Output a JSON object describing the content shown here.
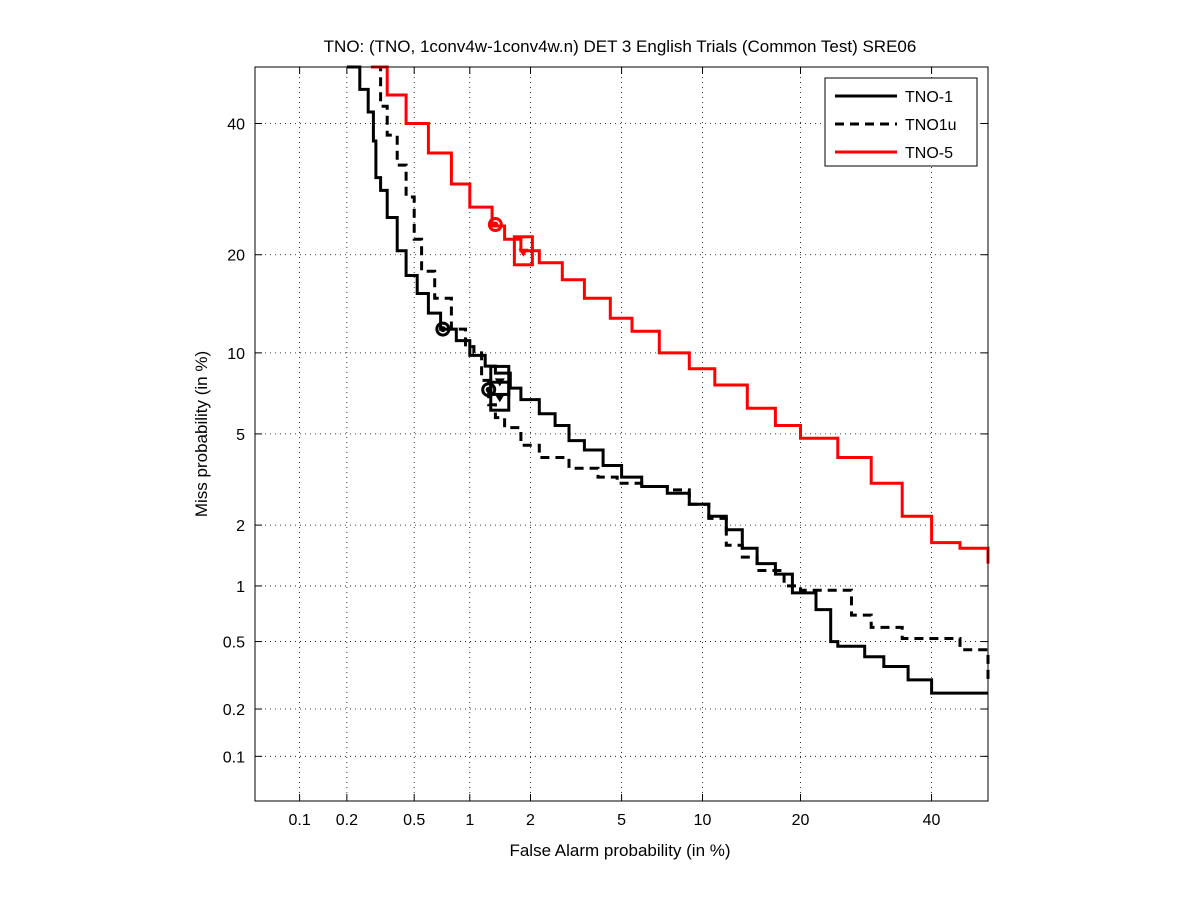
{
  "chart_data": {
    "type": "line",
    "scale": "normal-deviate (DET)",
    "title": "TNO: (TNO, 1conv4w-1conv4w.n) DET 3 English Trials (Common Test) SRE06",
    "xlabel": "False Alarm probability (in %)",
    "ylabel": "Miss probability (in %)",
    "xlim": [
      0.05,
      50
    ],
    "ylim": [
      0.05,
      50
    ],
    "xticks": [
      0.1,
      0.2,
      0.5,
      1,
      2,
      5,
      10,
      20,
      40
    ],
    "xtick_labels": [
      "0.1",
      "0.2",
      "0.5",
      "1",
      "2",
      "5",
      "10",
      "20",
      "40"
    ],
    "yticks": [
      0.1,
      0.2,
      0.5,
      1,
      2,
      5,
      10,
      20,
      40
    ],
    "ytick_labels": [
      "0.1",
      "0.2",
      "0.5",
      "1",
      "2",
      "5",
      "10",
      "20",
      "40"
    ],
    "grid": true,
    "legend_position": "top-right",
    "series": [
      {
        "name": "TNO-1",
        "color": "#000000",
        "dash": "solid",
        "points": [
          [
            0.2,
            50
          ],
          [
            0.24,
            46
          ],
          [
            0.27,
            42
          ],
          [
            0.29,
            37
          ],
          [
            0.3,
            31
          ],
          [
            0.32,
            29
          ],
          [
            0.35,
            25
          ],
          [
            0.4,
            20.5
          ],
          [
            0.45,
            17.5
          ],
          [
            0.52,
            15.5
          ],
          [
            0.6,
            13.5
          ],
          [
            0.7,
            12
          ],
          [
            0.85,
            11
          ],
          [
            1.0,
            9.8
          ],
          [
            1.2,
            9.0
          ],
          [
            1.35,
            8.5
          ],
          [
            1.6,
            7.5
          ],
          [
            1.8,
            6.8
          ],
          [
            2.2,
            6.0
          ],
          [
            2.6,
            5.4
          ],
          [
            3.0,
            4.7
          ],
          [
            3.5,
            4.3
          ],
          [
            4.2,
            3.7
          ],
          [
            5.0,
            3.3
          ],
          [
            6.0,
            3.0
          ],
          [
            7.5,
            2.8
          ],
          [
            9.0,
            2.5
          ],
          [
            10.5,
            2.2
          ],
          [
            12,
            1.9
          ],
          [
            13.5,
            1.55
          ],
          [
            15,
            1.3
          ],
          [
            17,
            1.15
          ],
          [
            19,
            0.92
          ],
          [
            22,
            0.75
          ],
          [
            24,
            0.5
          ],
          [
            25,
            0.47
          ],
          [
            29,
            0.41
          ],
          [
            32,
            0.36
          ],
          [
            36,
            0.3
          ],
          [
            40,
            0.25
          ],
          [
            45,
            0.25
          ],
          [
            50,
            0.25
          ]
        ]
      },
      {
        "name": "TNO1u",
        "color": "#000000",
        "dash": "dashed",
        "points": [
          [
            0.3,
            50
          ],
          [
            0.32,
            43
          ],
          [
            0.35,
            38
          ],
          [
            0.4,
            33
          ],
          [
            0.45,
            28
          ],
          [
            0.5,
            22
          ],
          [
            0.55,
            18
          ],
          [
            0.65,
            15
          ],
          [
            0.8,
            12
          ],
          [
            0.95,
            10.5
          ],
          [
            1.05,
            10
          ],
          [
            1.15,
            8
          ],
          [
            1.25,
            6.5
          ],
          [
            1.35,
            5.8
          ],
          [
            1.5,
            5.3
          ],
          [
            1.8,
            4.5
          ],
          [
            2.2,
            4.0
          ],
          [
            3.0,
            3.6
          ],
          [
            4.0,
            3.3
          ],
          [
            4.8,
            3.1
          ],
          [
            6.0,
            3.0
          ],
          [
            7.5,
            2.9
          ],
          [
            9.0,
            2.5
          ],
          [
            10.5,
            2.15
          ],
          [
            12,
            1.6
          ],
          [
            13.5,
            1.4
          ],
          [
            15,
            1.2
          ],
          [
            18,
            1.0
          ],
          [
            20,
            0.95
          ],
          [
            25,
            0.95
          ],
          [
            27,
            0.7
          ],
          [
            30,
            0.6
          ],
          [
            35,
            0.52
          ],
          [
            45,
            0.45
          ],
          [
            50,
            0.3
          ]
        ]
      },
      {
        "name": "TNO-5",
        "color": "#ff0000",
        "dash": "solid",
        "points": [
          [
            0.28,
            50
          ],
          [
            0.35,
            45
          ],
          [
            0.45,
            40
          ],
          [
            0.6,
            35
          ],
          [
            0.8,
            30
          ],
          [
            1.0,
            26.5
          ],
          [
            1.3,
            23.8
          ],
          [
            1.5,
            22
          ],
          [
            1.8,
            20.5
          ],
          [
            2.2,
            19
          ],
          [
            2.8,
            17
          ],
          [
            3.5,
            15
          ],
          [
            4.5,
            13
          ],
          [
            5.5,
            11.8
          ],
          [
            7.0,
            10
          ],
          [
            9.0,
            8.8
          ],
          [
            11,
            7.7
          ],
          [
            14,
            6.3
          ],
          [
            17,
            5.4
          ],
          [
            20,
            4.8
          ],
          [
            25,
            4.0
          ],
          [
            30,
            3.1
          ],
          [
            35,
            2.2
          ],
          [
            40,
            1.65
          ],
          [
            45,
            1.55
          ],
          [
            50,
            1.3
          ]
        ]
      }
    ],
    "markers": [
      {
        "series": "TNO-1",
        "shape": "circle",
        "x": 0.72,
        "y": 12.0
      },
      {
        "series": "TNO-1",
        "shape": "square",
        "x": 1.42,
        "y": 8.0
      },
      {
        "series": "TNO1u",
        "shape": "circle",
        "x": 1.25,
        "y": 7.4
      },
      {
        "series": "TNO1u",
        "shape": "square",
        "x": 1.42,
        "y": 7.0
      },
      {
        "series": "TNO-5",
        "shape": "circle",
        "x": 1.35,
        "y": 24.0
      },
      {
        "series": "TNO-5",
        "shape": "square",
        "x": 1.85,
        "y": 20.5
      }
    ]
  }
}
